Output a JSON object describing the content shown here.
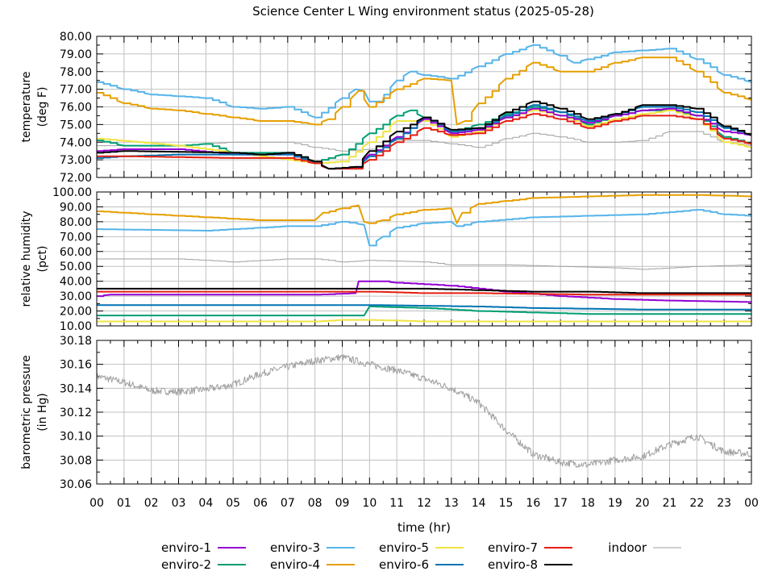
{
  "chart_data": {
    "type": "line",
    "title": "Science Center L Wing environment status (2025-05-28)",
    "xlabel": "time (hr)",
    "x_ticks": [
      "00",
      "01",
      "02",
      "03",
      "04",
      "05",
      "06",
      "07",
      "08",
      "09",
      "10",
      "11",
      "12",
      "13",
      "14",
      "15",
      "16",
      "17",
      "18",
      "19",
      "20",
      "21",
      "22",
      "23",
      "00"
    ],
    "xlim": [
      0,
      24
    ],
    "grid": true,
    "legend_placement": "bottom",
    "series_styles": [
      {
        "name": "enviro-1",
        "color": "#9400d3"
      },
      {
        "name": "enviro-2",
        "color": "#009e73"
      },
      {
        "name": "enviro-3",
        "color": "#56b4e9"
      },
      {
        "name": "enviro-4",
        "color": "#e69f00"
      },
      {
        "name": "enviro-5",
        "color": "#f0e442"
      },
      {
        "name": "enviro-6",
        "color": "#0072b2"
      },
      {
        "name": "enviro-7",
        "color": "#e51e10"
      },
      {
        "name": "enviro-8",
        "color": "#000000"
      },
      {
        "name": "indoor",
        "color": "#a0a0a0"
      }
    ],
    "panels": [
      {
        "ylabel": [
          "temperature",
          "(deg F)"
        ],
        "ylim": [
          72,
          80
        ],
        "y_ticks": [
          "72.00",
          "73.00",
          "74.00",
          "75.00",
          "76.00",
          "77.00",
          "78.00",
          "79.00",
          "80.00"
        ],
        "series": [
          {
            "name": "enviro-3",
            "x": [
              0,
              1,
              2,
              3,
              4,
              5,
              6,
              7,
              8,
              9,
              9.5,
              9.8,
              10,
              10.3,
              11,
              11.5,
              12,
              13,
              14,
              15,
              16,
              17,
              17.5,
              18,
              19,
              20,
              21,
              22,
              23,
              24
            ],
            "y": [
              77.4,
              77.0,
              76.7,
              76.6,
              76.5,
              76.0,
              75.9,
              76.0,
              75.4,
              76.5,
              77.0,
              76.9,
              76.3,
              76.3,
              77.5,
              78.0,
              77.8,
              77.6,
              78.3,
              79.0,
              79.5,
              78.9,
              78.5,
              78.7,
              79.1,
              79.2,
              79.3,
              78.7,
              77.8,
              77.4
            ]
          },
          {
            "name": "enviro-4",
            "x": [
              0,
              1,
              2,
              3,
              4,
              5,
              6,
              7,
              8,
              8.5,
              9,
              9.6,
              10,
              11,
              12,
              13,
              13.2,
              13.5,
              14,
              15,
              16,
              17,
              18,
              19,
              20,
              21,
              22,
              23,
              24
            ],
            "y": [
              76.8,
              76.2,
              75.9,
              75.8,
              75.6,
              75.4,
              75.2,
              75.2,
              75.0,
              75.3,
              76.0,
              76.9,
              76.0,
              77.0,
              77.6,
              77.5,
              75.0,
              75.2,
              76.2,
              77.6,
              78.5,
              78.0,
              78.0,
              78.5,
              78.8,
              78.8,
              78.0,
              76.8,
              76.4
            ]
          },
          {
            "name": "indoor",
            "x": [
              0,
              1,
              3,
              4,
              5,
              6,
              7,
              8,
              9,
              10,
              11,
              12,
              13,
              14,
              15,
              16,
              17,
              18,
              19,
              20,
              21,
              22,
              23,
              24
            ],
            "y": [
              73.8,
              73.8,
              73.8,
              73.9,
              74.0,
              74.0,
              74.0,
              73.7,
              73.5,
              73.6,
              74.1,
              74.1,
              73.9,
              73.7,
              74.2,
              74.5,
              74.3,
              74.0,
              74.0,
              74.1,
              74.6,
              74.6,
              74.0,
              73.8
            ]
          },
          {
            "name": "enviro-2",
            "x": [
              0,
              1,
              2,
              3,
              4,
              5,
              6,
              7,
              8,
              9,
              10,
              11,
              11.5,
              12,
              13,
              14,
              15,
              16,
              17,
              18,
              19,
              20,
              21,
              22,
              23,
              24
            ],
            "y": [
              74.1,
              73.8,
              73.8,
              73.8,
              73.9,
              73.4,
              73.4,
              73.4,
              72.9,
              73.3,
              74.5,
              75.5,
              75.8,
              75.4,
              74.6,
              75.0,
              75.6,
              76.0,
              75.7,
              75.0,
              75.5,
              75.8,
              75.8,
              75.5,
              74.3,
              73.9
            ]
          },
          {
            "name": "enviro-5",
            "x": [
              0,
              3,
              5,
              8,
              9,
              10,
              11,
              12,
              13,
              14,
              15,
              16,
              17,
              18,
              19,
              20,
              21,
              22,
              23,
              24
            ],
            "y": [
              74.2,
              73.8,
              73.4,
              72.8,
              72.9,
              74.0,
              75.2,
              75.2,
              74.3,
              74.6,
              75.4,
              75.8,
              75.5,
              74.9,
              75.3,
              75.6,
              75.8,
              75.3,
              74.0,
              73.7
            ]
          },
          {
            "name": "enviro-1",
            "x": [
              0,
              1,
              3,
              5,
              7,
              8,
              8.5,
              9.5,
              10,
              11,
              12,
              13,
              14,
              15,
              16,
              17,
              18,
              19,
              20,
              21,
              22,
              23,
              24
            ],
            "y": [
              73.5,
              73.6,
              73.6,
              73.3,
              73.3,
              72.8,
              72.5,
              72.6,
              73.3,
              74.3,
              75.3,
              74.5,
              74.7,
              75.4,
              75.9,
              75.5,
              75.1,
              75.5,
              75.8,
              75.9,
              75.5,
              74.6,
              74.4
            ]
          },
          {
            "name": "enviro-6",
            "x": [
              0,
              1,
              3,
              5,
              7,
              8,
              8.5,
              9.5,
              10,
              11,
              12,
              13,
              14,
              15,
              16,
              17,
              18,
              19,
              20,
              21,
              22,
              23,
              24
            ],
            "y": [
              73.1,
              73.2,
              73.3,
              73.3,
              73.3,
              72.8,
              72.5,
              72.5,
              73.2,
              74.2,
              75.4,
              74.6,
              74.8,
              75.5,
              76.1,
              75.7,
              75.2,
              75.6,
              76.0,
              76.0,
              75.7,
              74.8,
              74.4
            ]
          },
          {
            "name": "enviro-7",
            "x": [
              0,
              1,
              5,
              7,
              8,
              8.5,
              9.5,
              10,
              11,
              12,
              13,
              14,
              15,
              16,
              17,
              18,
              19,
              20,
              21,
              22,
              23,
              24
            ],
            "y": [
              73.2,
              73.2,
              73.1,
              73.1,
              72.8,
              72.5,
              72.5,
              73.0,
              74.0,
              74.8,
              74.4,
              74.5,
              75.2,
              75.6,
              75.3,
              74.8,
              75.2,
              75.5,
              75.5,
              75.3,
              74.2,
              73.9
            ]
          },
          {
            "name": "enviro-8",
            "x": [
              0,
              1,
              5,
              6,
              7,
              8,
              8.5,
              9.5,
              10,
              11,
              12,
              13,
              14,
              15,
              16,
              17,
              18,
              19,
              20,
              21,
              22,
              23,
              24
            ],
            "y": [
              73.4,
              73.5,
              73.4,
              73.3,
              73.4,
              72.9,
              72.5,
              72.6,
              73.5,
              74.6,
              75.4,
              74.7,
              74.8,
              75.7,
              76.3,
              75.9,
              75.3,
              75.6,
              76.1,
              76.1,
              75.9,
              74.9,
              74.4
            ]
          }
        ]
      },
      {
        "ylabel": [
          "relative humidity",
          "(pct)"
        ],
        "ylim": [
          10,
          100
        ],
        "y_ticks": [
          "10.00",
          "20.00",
          "30.00",
          "40.00",
          "50.00",
          "60.00",
          "70.00",
          "80.00",
          "90.00",
          "100.00"
        ],
        "series": [
          {
            "name": "enviro-4",
            "x": [
              0,
              1,
              2,
              3,
              4,
              5,
              6,
              7,
              8,
              8.3,
              9,
              9.6,
              9.8,
              10,
              10.5,
              11,
              12,
              13,
              13.2,
              13.4,
              14,
              15,
              16,
              18,
              20,
              22,
              24
            ],
            "y": [
              87,
              86,
              85,
              84,
              83,
              82,
              81,
              81,
              81,
              86,
              89,
              91,
              80,
              79,
              81,
              85,
              88,
              89,
              79,
              86,
              92,
              94,
              96,
              97,
              98,
              98,
              97
            ]
          },
          {
            "name": "enviro-3",
            "x": [
              0,
              4,
              5,
              6,
              7,
              8,
              9,
              9.8,
              10,
              10.5,
              11,
              12,
              13,
              13.2,
              14,
              16,
              18,
              20,
              22,
              23,
              24
            ],
            "y": [
              75,
              74,
              75,
              76,
              77,
              77,
              80,
              78,
              64,
              70,
              76,
              79,
              80,
              77,
              80,
              83,
              84,
              85,
              88,
              85,
              84
            ]
          },
          {
            "name": "indoor",
            "x": [
              0,
              3,
              5,
              7,
              8,
              9,
              10,
              12,
              13,
              15,
              17,
              19,
              20,
              22,
              24
            ],
            "y": [
              55,
              55,
              53,
              55,
              55,
              53,
              54,
              53,
              51,
              51,
              50,
              49,
              48,
              50,
              51
            ]
          },
          {
            "name": "enviro-1",
            "x": [
              0,
              0.5,
              8,
              9.5,
              9.6,
              10.5,
              11,
              13,
              15,
              17,
              19,
              21,
              24
            ],
            "y": [
              30,
              31,
              31,
              32,
              40,
              40,
              39,
              37,
              33,
              30,
              28,
              27,
              26
            ]
          },
          {
            "name": "enviro-8",
            "x": [
              0,
              12,
              14,
              16,
              18,
              20,
              24
            ],
            "y": [
              35,
              35,
              34,
              33,
              33,
              32,
              32
            ]
          },
          {
            "name": "enviro-7",
            "x": [
              0,
              10,
              12,
              14,
              18,
              24
            ],
            "y": [
              33,
              33,
              32,
              32,
              31,
              31
            ]
          },
          {
            "name": "enviro-6",
            "x": [
              0,
              10,
              14,
              16,
              20,
              24
            ],
            "y": [
              24,
              24,
              23,
              22,
              21,
              21
            ]
          },
          {
            "name": "enviro-2",
            "x": [
              0,
              7,
              9.8,
              10,
              12,
              14,
              16,
              18,
              24
            ],
            "y": [
              17,
              17,
              17,
              23,
              22,
              20,
              19,
              18,
              18
            ]
          },
          {
            "name": "enviro-5",
            "x": [
              0,
              5,
              8,
              9,
              10,
              12,
              24
            ],
            "y": [
              13,
              13,
              13,
              14,
              14,
              13,
              13
            ]
          }
        ]
      },
      {
        "ylabel": [
          "barometric pressure",
          "(in Hg)"
        ],
        "ylim": [
          30.06,
          30.18
        ],
        "y_ticks": [
          "30.06",
          "30.08",
          "30.10",
          "30.12",
          "30.14",
          "30.16",
          "30.18"
        ],
        "series": [
          {
            "name": "indoor",
            "x": [
              0,
              1,
              2,
              3,
              4,
              5,
              6,
              7,
              8,
              9,
              10,
              11,
              12,
              13,
              14,
              15,
              16,
              17,
              18,
              19,
              20,
              21,
              22,
              23,
              24
            ],
            "y": [
              30.15,
              30.145,
              30.138,
              30.137,
              30.139,
              30.143,
              30.152,
              30.158,
              30.163,
              30.166,
              30.16,
              30.155,
              30.148,
              30.14,
              30.128,
              30.105,
              30.085,
              30.078,
              30.076,
              30.08,
              30.083,
              30.093,
              30.1,
              30.087,
              30.085
            ]
          }
        ]
      }
    ]
  }
}
